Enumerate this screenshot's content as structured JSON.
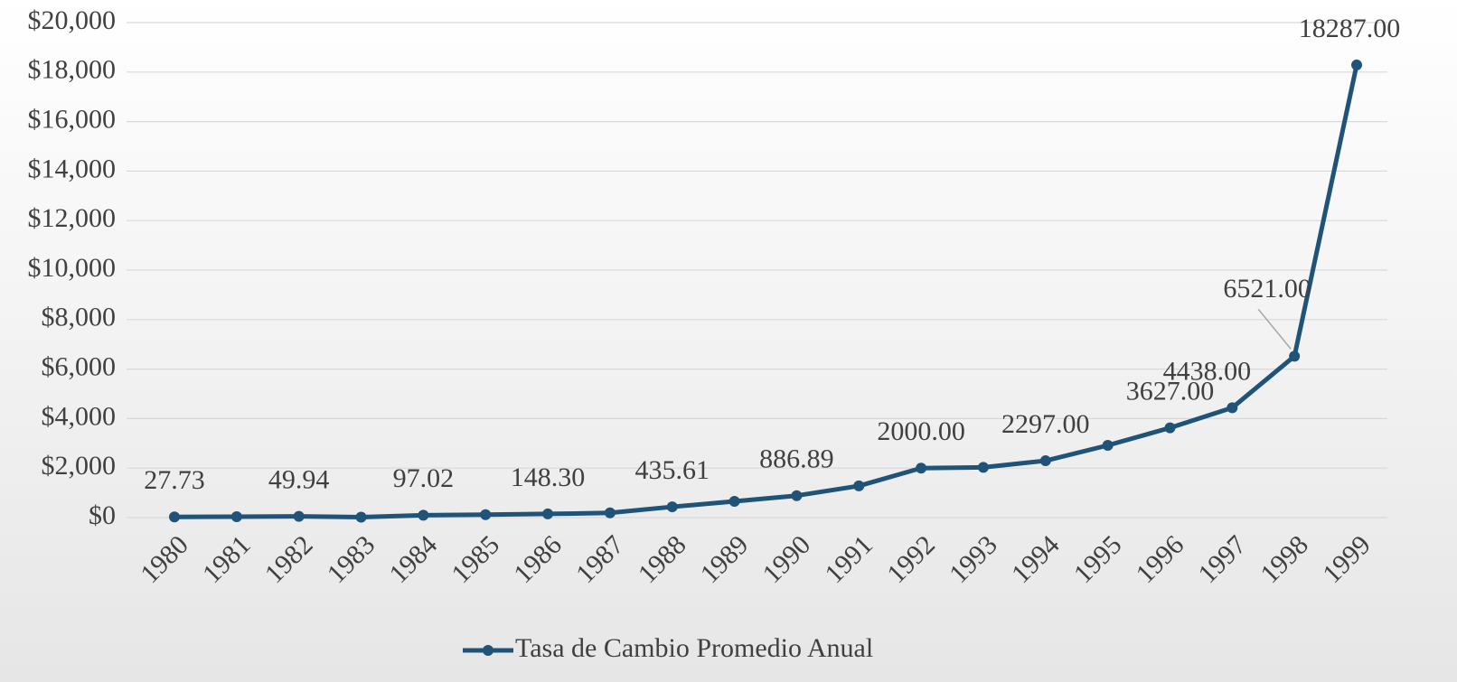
{
  "chart_data": {
    "type": "line",
    "categories": [
      "1980",
      "1981",
      "1982",
      "1983",
      "1984",
      "1985",
      "1986",
      "1987",
      "1988",
      "1989",
      "1990",
      "1991",
      "1992",
      "1993",
      "1994",
      "1995",
      "1996",
      "1997",
      "1998",
      "1999"
    ],
    "series": [
      {
        "name": "Tasa de Cambio Promedio Anual",
        "color": "#1f5378",
        "values": [
          27.73,
          35,
          49.94,
          20,
          97.02,
          120,
          148.3,
          190,
          435.61,
          657,
          886.89,
          1280,
          2000,
          2030,
          2297,
          2920,
          3627,
          4438,
          6521,
          18287
        ],
        "value_labels": [
          "27.73",
          null,
          "49.94",
          null,
          "97.02",
          null,
          "148.30",
          null,
          "435.61",
          null,
          "886.89",
          null,
          "2000.00",
          null,
          "2297.00",
          null,
          "3627.00",
          "4438.00",
          "6521.00",
          "18287.00"
        ]
      }
    ],
    "ylim": [
      0,
      20000
    ],
    "yticks": [
      {
        "value": 0,
        "label": "$0"
      },
      {
        "value": 2000,
        "label": "$2,000"
      },
      {
        "value": 4000,
        "label": "$4,000"
      },
      {
        "value": 6000,
        "label": "$6,000"
      },
      {
        "value": 8000,
        "label": "$8,000"
      },
      {
        "value": 10000,
        "label": "$10,000"
      },
      {
        "value": 12000,
        "label": "$12,000"
      },
      {
        "value": 14000,
        "label": "$14,000"
      },
      {
        "value": 16000,
        "label": "$16,000"
      },
      {
        "value": 18000,
        "label": "$18,000"
      },
      {
        "value": 20000,
        "label": "$20,000"
      }
    ],
    "grid": true,
    "legend": "bottom"
  }
}
